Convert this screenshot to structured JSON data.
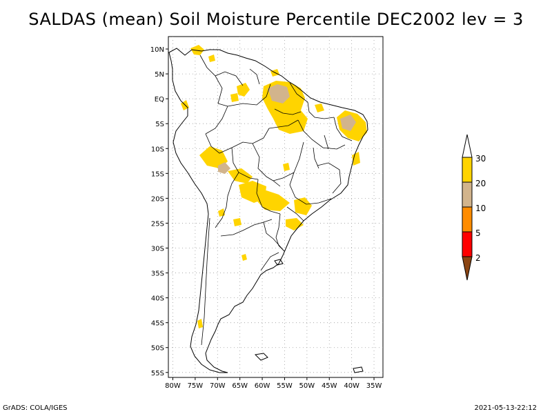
{
  "title": "SALDAS (mean) Soil Moisture Percentile DEC2002 lev = 3",
  "map": {
    "region": "South America",
    "lat_ticks": [
      "10N",
      "5N",
      "EQ",
      "5S",
      "10S",
      "15S",
      "20S",
      "25S",
      "30S",
      "35S",
      "40S",
      "45S",
      "50S",
      "55S"
    ],
    "lat_values": [
      10,
      5,
      0,
      -5,
      -10,
      -15,
      -20,
      -25,
      -30,
      -35,
      -40,
      -45,
      -50,
      -55
    ],
    "lon_ticks": [
      "80W",
      "75W",
      "70W",
      "65W",
      "60W",
      "55W",
      "50W",
      "45W",
      "40W",
      "35W"
    ],
    "lon_values": [
      -80,
      -75,
      -70,
      -65,
      -60,
      -55,
      -50,
      -45,
      -40,
      -35
    ],
    "lat_range": [
      -56,
      12.5
    ],
    "lon_range": [
      -81,
      -33
    ],
    "grid": true
  },
  "legend": {
    "labels": [
      "30",
      "20",
      "10",
      "5",
      "2"
    ],
    "colors": {
      "top_triangle": "#ffffff",
      "band_20_30": "#ffd400",
      "band_10_20": "#d2b48c",
      "band_5_10": "#ff8c00",
      "band_2_5": "#ff0000",
      "bottom_triangle": "#8b4513"
    }
  },
  "colors": {
    "dry_yellow": "#ffd400",
    "tan": "#d2b48c"
  },
  "footer": {
    "left": "GrADS: COLA/IGES",
    "right": "2021-05-13-22:12"
  }
}
